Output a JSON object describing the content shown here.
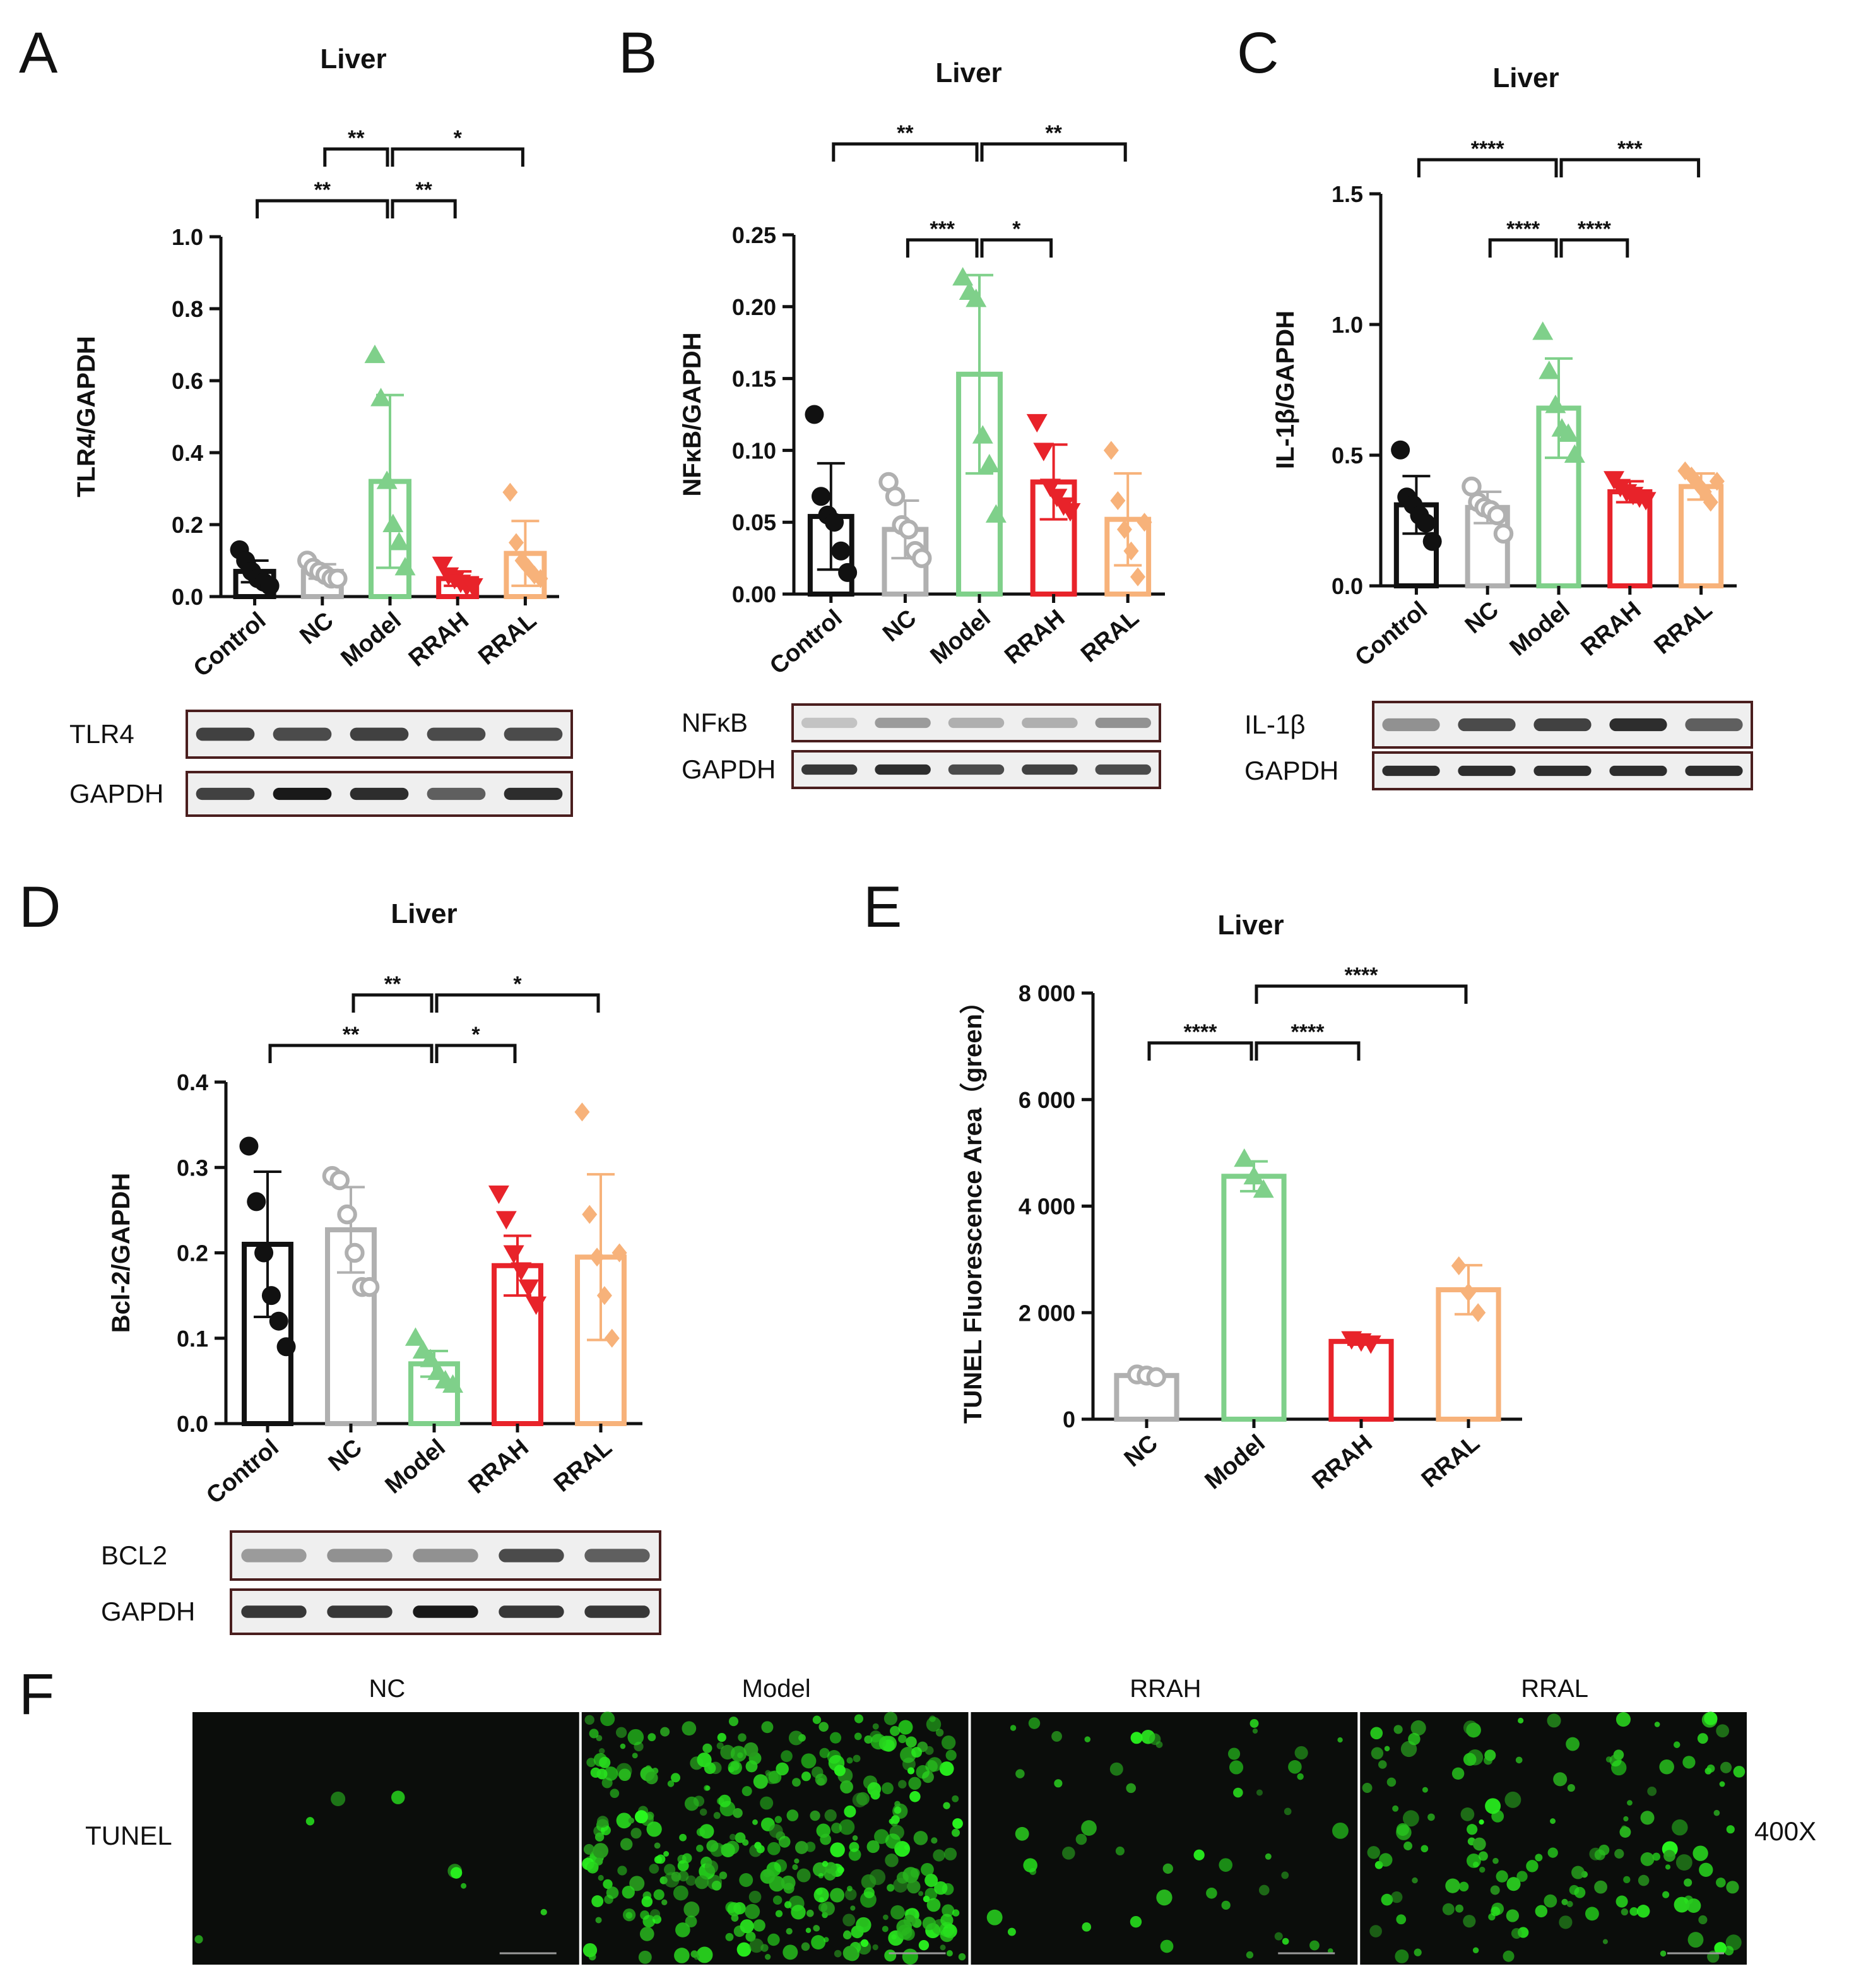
{
  "figure": {
    "panel_F": {
      "letter": "F",
      "row_label": "TUNEL",
      "magnification": "400X",
      "columns": [
        "NC",
        "Model",
        "RRAH",
        "RRAL"
      ],
      "cell_density": [
        0.02,
        0.9,
        0.12,
        0.35
      ]
    }
  },
  "colors": {
    "Control": "#111111",
    "NC": "#b0b0b0",
    "Model": "#7fd08a",
    "RRAH": "#e8232a",
    "RRAL": "#f7b27a"
  },
  "chart_data": [
    {
      "id": "A",
      "type": "bar",
      "letter": "A",
      "title": "Liver",
      "ylabel": "TLR4/GAPDH",
      "ylim": [
        0,
        1.0
      ],
      "yticks": [
        "0.0",
        "0.2",
        "0.4",
        "0.6",
        "0.8",
        "1.0"
      ],
      "categories": [
        "Control",
        "NC",
        "Model",
        "RRAH",
        "RRAL"
      ],
      "means": [
        0.07,
        0.07,
        0.32,
        0.05,
        0.12
      ],
      "errors": [
        0.03,
        0.02,
        0.24,
        0.02,
        0.09
      ],
      "points": [
        [
          0.13,
          0.1,
          0.07,
          0.05,
          0.04,
          0.03
        ],
        [
          0.1,
          0.08,
          0.07,
          0.06,
          0.05,
          0.05
        ],
        [
          0.67,
          0.55,
          0.32,
          0.2,
          0.15,
          0.08
        ],
        [
          0.09,
          0.06,
          0.05,
          0.04,
          0.03,
          0.03
        ],
        [
          0.29,
          0.15,
          0.1,
          0.08,
          0.06,
          0.05
        ]
      ],
      "markers": [
        "circle",
        "circle-open",
        "triangle",
        "triangle-down",
        "diamond"
      ],
      "significance": [
        {
          "from": 1,
          "to": 2,
          "label": "**",
          "level": 3
        },
        {
          "from": 2,
          "to": 4,
          "label": "*",
          "level": 3
        },
        {
          "from": 0,
          "to": 2,
          "label": "**",
          "level": 1
        },
        {
          "from": 2,
          "to": 3,
          "label": "**",
          "level": 1
        }
      ],
      "blots": [
        {
          "label": "TLR4"
        },
        {
          "label": "GAPDH"
        }
      ],
      "blot_intensity": [
        [
          0.75,
          0.7,
          0.75,
          0.7,
          0.7
        ],
        [
          0.75,
          0.95,
          0.85,
          0.6,
          0.85
        ]
      ]
    },
    {
      "id": "B",
      "type": "bar",
      "letter": "B",
      "title": "Liver",
      "ylabel": "NFκB/GAPDH",
      "ylim": [
        0,
        0.25
      ],
      "yticks": [
        "0.00",
        "0.05",
        "0.10",
        "0.15",
        "0.20",
        "0.25"
      ],
      "categories": [
        "Control",
        "NC",
        "Model",
        "RRAH",
        "RRAL"
      ],
      "means": [
        0.054,
        0.045,
        0.153,
        0.078,
        0.052
      ],
      "errors": [
        0.037,
        0.02,
        0.069,
        0.026,
        0.032
      ],
      "points": [
        [
          0.125,
          0.068,
          0.055,
          0.05,
          0.03,
          0.015
        ],
        [
          0.078,
          0.068,
          0.048,
          0.045,
          0.03,
          0.025
        ],
        [
          0.22,
          0.21,
          0.205,
          0.11,
          0.09,
          0.055
        ],
        [
          0.12,
          0.1,
          0.075,
          0.068,
          0.062,
          0.058
        ],
        [
          0.1,
          0.065,
          0.045,
          0.03,
          0.012,
          0.05
        ]
      ],
      "markers": [
        "circle",
        "circle-open",
        "triangle",
        "triangle-down",
        "diamond"
      ],
      "significance": [
        {
          "from": 0,
          "to": 2,
          "label": "**",
          "level": 3
        },
        {
          "from": 2,
          "to": 4,
          "label": "**",
          "level": 3
        },
        {
          "from": 1,
          "to": 2,
          "label": "***",
          "level": 1
        },
        {
          "from": 2,
          "to": 3,
          "label": "*",
          "level": 1
        }
      ],
      "blots": [
        {
          "label": "NFκB"
        },
        {
          "label": "GAPDH"
        }
      ],
      "blot_intensity": [
        [
          0.1,
          0.3,
          0.2,
          0.2,
          0.35
        ],
        [
          0.8,
          0.85,
          0.7,
          0.75,
          0.7
        ]
      ]
    },
    {
      "id": "C",
      "type": "bar",
      "letter": "C",
      "title": "Liver",
      "ylabel": "IL-1β/GAPDH",
      "ylim": [
        0,
        1.5
      ],
      "yticks": [
        "0.0",
        "0.5",
        "1.0",
        "1.5"
      ],
      "categories": [
        "Control",
        "NC",
        "Model",
        "RRAH",
        "RRAL"
      ],
      "means": [
        0.31,
        0.3,
        0.68,
        0.36,
        0.38
      ],
      "errors": [
        0.11,
        0.06,
        0.19,
        0.04,
        0.05
      ],
      "points": [
        [
          0.52,
          0.34,
          0.31,
          0.27,
          0.24,
          0.17
        ],
        [
          0.38,
          0.32,
          0.3,
          0.29,
          0.27,
          0.2
        ],
        [
          0.97,
          0.82,
          0.69,
          0.6,
          0.58,
          0.5
        ],
        [
          0.41,
          0.38,
          0.36,
          0.35,
          0.34,
          0.33
        ],
        [
          0.44,
          0.42,
          0.39,
          0.36,
          0.32,
          0.4
        ]
      ],
      "markers": [
        "circle",
        "circle-open",
        "triangle",
        "triangle-down",
        "diamond"
      ],
      "significance": [
        {
          "from": 0,
          "to": 2,
          "label": "****",
          "level": 3
        },
        {
          "from": 2,
          "to": 4,
          "label": "***",
          "level": 3
        },
        {
          "from": 1,
          "to": 2,
          "label": "****",
          "level": 1
        },
        {
          "from": 2,
          "to": 3,
          "label": "****",
          "level": 1
        }
      ],
      "blots": [
        {
          "label": "IL-1β"
        },
        {
          "label": "GAPDH"
        }
      ],
      "blot_intensity": [
        [
          0.35,
          0.7,
          0.75,
          0.85,
          0.6
        ],
        [
          0.85,
          0.85,
          0.85,
          0.85,
          0.85
        ]
      ]
    },
    {
      "id": "D",
      "type": "bar",
      "letter": "D",
      "title": "Liver",
      "ylabel": "Bcl-2/GAPDH",
      "ylim": [
        0,
        0.4
      ],
      "yticks": [
        "0.0",
        "0.1",
        "0.2",
        "0.3",
        "0.4"
      ],
      "categories": [
        "Control",
        "NC",
        "Model",
        "RRAH",
        "RRAL"
      ],
      "means": [
        0.21,
        0.227,
        0.07,
        0.185,
        0.195
      ],
      "errors": [
        0.085,
        0.05,
        0.015,
        0.035,
        0.097
      ],
      "points": [
        [
          0.325,
          0.26,
          0.2,
          0.15,
          0.12,
          0.09
        ],
        [
          0.29,
          0.285,
          0.245,
          0.2,
          0.16,
          0.16
        ],
        [
          0.1,
          0.085,
          0.075,
          0.06,
          0.05,
          0.045
        ],
        [
          0.27,
          0.24,
          0.2,
          0.18,
          0.16,
          0.14
        ],
        [
          0.365,
          0.245,
          0.195,
          0.15,
          0.1,
          0.2
        ]
      ],
      "markers": [
        "circle",
        "circle-open",
        "triangle",
        "triangle-down",
        "diamond"
      ],
      "significance": [
        {
          "from": 1,
          "to": 2,
          "label": "**",
          "level": 3
        },
        {
          "from": 2,
          "to": 4,
          "label": "*",
          "level": 3
        },
        {
          "from": 0,
          "to": 2,
          "label": "**",
          "level": 1
        },
        {
          "from": 2,
          "to": 3,
          "label": "*",
          "level": 1
        }
      ],
      "blots": [
        {
          "label": "BCL2"
        },
        {
          "label": "GAPDH"
        }
      ],
      "blot_intensity": [
        [
          0.3,
          0.35,
          0.35,
          0.7,
          0.6
        ],
        [
          0.8,
          0.8,
          0.95,
          0.8,
          0.8
        ]
      ]
    },
    {
      "id": "E",
      "type": "bar",
      "letter": "E",
      "title": "Liver",
      "ylabel": "TUNEL Fluorescence Area（green）",
      "ylim": [
        0,
        8000
      ],
      "yticks": [
        "0",
        "2 000",
        "4 000",
        "6 000",
        "8 000"
      ],
      "categories": [
        "NC",
        "Model",
        "RRAH",
        "RRAL"
      ],
      "means": [
        820,
        4560,
        1460,
        2430
      ],
      "errors": [
        60,
        280,
        60,
        460
      ],
      "points": [
        [
          840,
          820,
          790
        ],
        [
          4880,
          4550,
          4300
        ],
        [
          1510,
          1470,
          1430
        ],
        [
          2880,
          2380,
          2000
        ]
      ],
      "markers": [
        "circle-open",
        "triangle",
        "triangle-down",
        "diamond"
      ],
      "color_keys": [
        "NC",
        "Model",
        "RRAH",
        "RRAL"
      ],
      "significance": [
        {
          "from": 1,
          "to": 3,
          "label": "****",
          "level": 3
        },
        {
          "from": 0,
          "to": 1,
          "label": "****",
          "level": 1
        },
        {
          "from": 1,
          "to": 2,
          "label": "****",
          "level": 1
        }
      ]
    }
  ]
}
